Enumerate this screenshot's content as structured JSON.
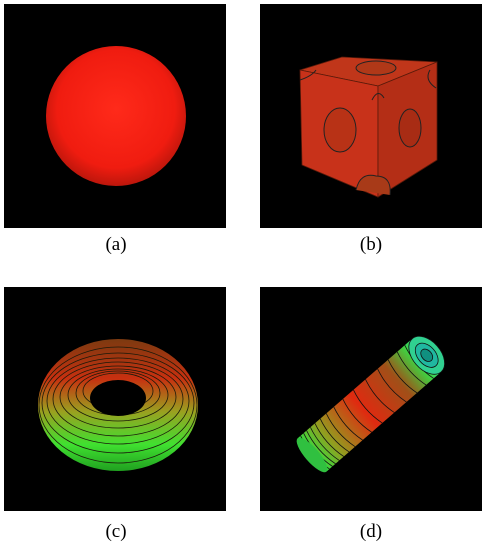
{
  "figure": {
    "panels": [
      {
        "caption": "(a)"
      },
      {
        "caption": "(b)"
      },
      {
        "caption": "(c)"
      },
      {
        "caption": "(d)"
      }
    ]
  }
}
